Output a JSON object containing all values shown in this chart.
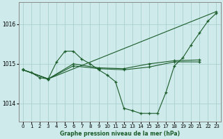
{
  "background_color": "#ceeaea",
  "grid_color": "#aad0d0",
  "line_color": "#1a5c2a",
  "spine_color": "#888888",
  "title": "Graphe pression niveau de la mer (hPa)",
  "ylim": [
    1013.55,
    1016.55
  ],
  "xlim": [
    -0.5,
    23.5
  ],
  "yticks": [
    1014,
    1015,
    1016
  ],
  "xticks": [
    0,
    1,
    2,
    3,
    4,
    5,
    6,
    7,
    8,
    9,
    10,
    11,
    12,
    13,
    14,
    15,
    16,
    17,
    18,
    19,
    20,
    21,
    22,
    23
  ],
  "lines": [
    {
      "x": [
        0,
        1,
        2,
        3,
        4,
        5,
        6,
        7,
        8,
        9,
        10,
        11,
        12,
        13,
        14,
        15,
        16,
        17,
        18,
        19,
        20,
        21,
        22,
        23
      ],
      "y": [
        1014.85,
        1014.78,
        1014.65,
        1014.62,
        1015.05,
        1015.32,
        1015.32,
        1015.12,
        1015.0,
        1014.85,
        1014.72,
        1014.55,
        1013.88,
        1013.82,
        1013.75,
        1013.75,
        1013.75,
        1014.28,
        1014.95,
        1015.15,
        1015.48,
        1015.78,
        1016.08,
        1016.28
      ]
    },
    {
      "x": [
        0,
        3,
        23
      ],
      "y": [
        1014.85,
        1014.62,
        1016.32
      ]
    },
    {
      "x": [
        0,
        3,
        6,
        9,
        12,
        15,
        18,
        21
      ],
      "y": [
        1014.85,
        1014.62,
        1014.95,
        1014.88,
        1014.85,
        1014.92,
        1015.05,
        1015.05
      ]
    },
    {
      "x": [
        0,
        3,
        6,
        9,
        12,
        15,
        18,
        21
      ],
      "y": [
        1014.85,
        1014.62,
        1015.0,
        1014.9,
        1014.88,
        1015.0,
        1015.08,
        1015.1
      ]
    }
  ],
  "title_fontsize": 5.5,
  "tick_fontsize": 5,
  "ytick_fontsize": 5.5
}
